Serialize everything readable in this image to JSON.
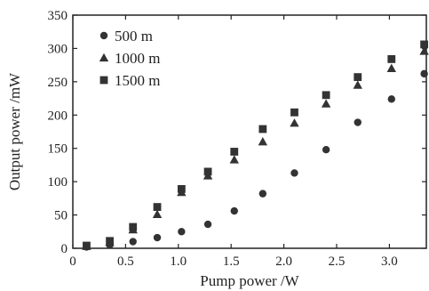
{
  "chart_data": {
    "type": "scatter",
    "title": "",
    "xlabel": "Pump power /W",
    "ylabel": "Output power /mW",
    "xlim": [
      0,
      3.35
    ],
    "ylim": [
      0,
      350
    ],
    "xticks": [
      0,
      0.5,
      1.0,
      1.5,
      2.0,
      2.5,
      3.0
    ],
    "xtick_labels": [
      "0",
      "0.5",
      "1.0",
      "1.5",
      "2.0",
      "2.5",
      "3.0"
    ],
    "yticks": [
      0,
      50,
      100,
      150,
      200,
      250,
      300,
      350
    ],
    "ytick_labels": [
      "0",
      "50",
      "100",
      "150",
      "200",
      "250",
      "300",
      "350"
    ],
    "grid": false,
    "legend_position": "top-left",
    "series": [
      {
        "name": "500 m",
        "marker": "circle",
        "color": "#333333",
        "points": [
          [
            0.13,
            2
          ],
          [
            0.35,
            5
          ],
          [
            0.57,
            10
          ],
          [
            0.8,
            16
          ],
          [
            1.03,
            25
          ],
          [
            1.28,
            36
          ],
          [
            1.53,
            56
          ],
          [
            1.8,
            82
          ],
          [
            2.1,
            113
          ],
          [
            2.4,
            148
          ],
          [
            2.7,
            189
          ],
          [
            3.02,
            224
          ],
          [
            3.33,
            262
          ]
        ]
      },
      {
        "name": "1000 m",
        "marker": "triangle",
        "color": "#333333",
        "points": [
          [
            0.13,
            3
          ],
          [
            0.35,
            9
          ],
          [
            0.57,
            28
          ],
          [
            0.8,
            51
          ],
          [
            1.03,
            84
          ],
          [
            1.28,
            109
          ],
          [
            1.53,
            133
          ],
          [
            1.8,
            160
          ],
          [
            2.1,
            188
          ],
          [
            2.4,
            217
          ],
          [
            2.7,
            245
          ],
          [
            3.02,
            270
          ],
          [
            3.33,
            296
          ]
        ]
      },
      {
        "name": "1500 m",
        "marker": "square",
        "color": "#333333",
        "points": [
          [
            0.13,
            4
          ],
          [
            0.35,
            11
          ],
          [
            0.57,
            32
          ],
          [
            0.8,
            62
          ],
          [
            1.03,
            89
          ],
          [
            1.28,
            115
          ],
          [
            1.53,
            145
          ],
          [
            1.8,
            179
          ],
          [
            2.1,
            204
          ],
          [
            2.4,
            230
          ],
          [
            2.7,
            257
          ],
          [
            3.02,
            284
          ],
          [
            3.33,
            306
          ]
        ]
      }
    ]
  }
}
